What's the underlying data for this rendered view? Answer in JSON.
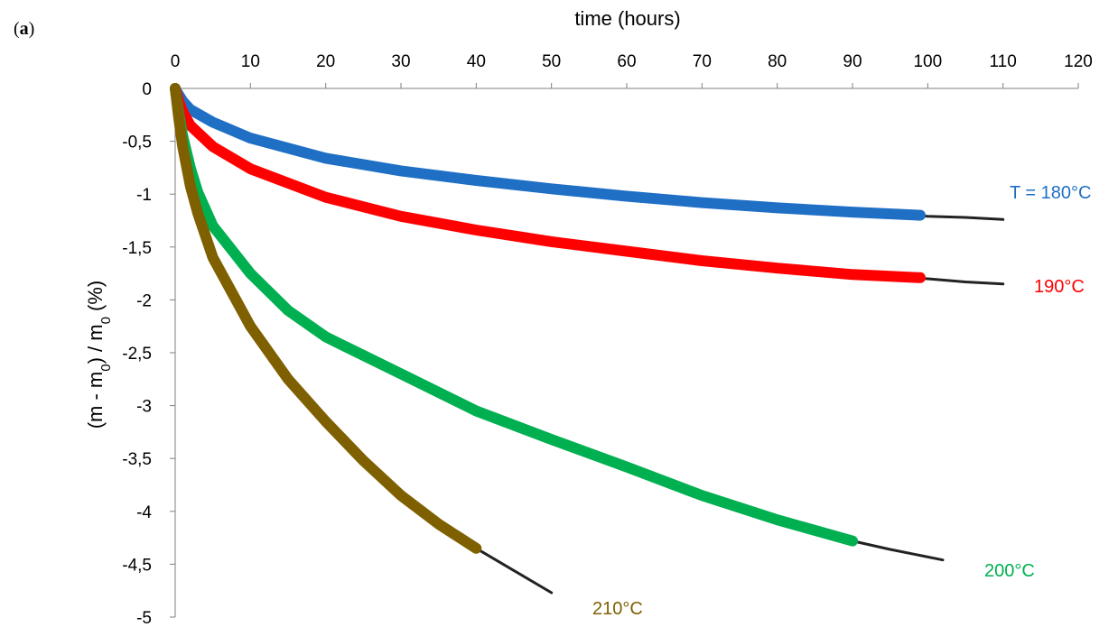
{
  "chart_data": {
    "type": "line",
    "panel_label_prefix": "(",
    "panel_label_letter": "a",
    "panel_label_suffix": ")",
    "xlabel": "time (hours)",
    "ylabel_parts": [
      "(m - m",
      "0",
      ") / m",
      "0",
      " (%)"
    ],
    "xlim": [
      0,
      120
    ],
    "ylim": [
      -5,
      0
    ],
    "x_axis_position": "top",
    "grid": false,
    "x_ticks": [
      0,
      10,
      20,
      30,
      40,
      50,
      60,
      70,
      80,
      90,
      100,
      110,
      120
    ],
    "x_tick_labels": [
      "0",
      "10",
      "20",
      "30",
      "40",
      "50",
      "60",
      "70",
      "80",
      "90",
      "100",
      "110",
      "120"
    ],
    "y_ticks": [
      0,
      -0.5,
      -1,
      -1.5,
      -2,
      -2.5,
      -3,
      -3.5,
      -4,
      -4.5,
      -5
    ],
    "y_tick_labels": [
      "0",
      "-0,5",
      "-1",
      "-1,5",
      "-2",
      "-2,5",
      "-3",
      "-3,5",
      "-4",
      "-4,5",
      "-5"
    ],
    "series": [
      {
        "label": "T = 180°C",
        "color": "#1f6fc5",
        "x": [
          0,
          0.2,
          1,
          2,
          5,
          10,
          20,
          30,
          40,
          50,
          60,
          70,
          80,
          90,
          99
        ],
        "y": [
          0,
          -0.03,
          -0.12,
          -0.2,
          -0.32,
          -0.47,
          -0.66,
          -0.78,
          -0.87,
          -0.95,
          -1.02,
          -1.08,
          -1.13,
          -1.17,
          -1.2
        ],
        "model_x": [
          95,
          100,
          105,
          110
        ],
        "model_y": [
          -1.19,
          -1.21,
          -1.22,
          -1.24
        ]
      },
      {
        "label": "190°C",
        "color": "#ff0000",
        "x": [
          0,
          0.5,
          1,
          2,
          5,
          10,
          20,
          30,
          40,
          50,
          60,
          70,
          80,
          90,
          99
        ],
        "y": [
          0,
          -0.13,
          -0.22,
          -0.35,
          -0.55,
          -0.76,
          -1.03,
          -1.21,
          -1.34,
          -1.45,
          -1.54,
          -1.63,
          -1.7,
          -1.76,
          -1.79
        ],
        "model_x": [
          95,
          100,
          105,
          110
        ],
        "model_y": [
          -1.78,
          -1.8,
          -1.83,
          -1.85
        ]
      },
      {
        "label": "200°C",
        "color": "#00b050",
        "x": [
          0,
          0.5,
          1,
          2,
          3,
          5,
          10,
          15,
          20,
          30,
          40,
          50,
          60,
          70,
          80,
          90
        ],
        "y": [
          0,
          -0.25,
          -0.45,
          -0.75,
          -0.98,
          -1.3,
          -1.75,
          -2.1,
          -2.35,
          -2.7,
          -3.05,
          -3.32,
          -3.58,
          -3.85,
          -4.08,
          -4.28
        ],
        "model_x": [
          85,
          90,
          95,
          102
        ],
        "model_y": [
          -4.18,
          -4.28,
          -4.36,
          -4.46
        ]
      },
      {
        "label": "210°C",
        "color": "#7f6000",
        "x": [
          0,
          0.5,
          1,
          2,
          3,
          5,
          10,
          15,
          20,
          25,
          30,
          35,
          40
        ],
        "y": [
          0,
          -0.3,
          -0.55,
          -0.92,
          -1.18,
          -1.6,
          -2.25,
          -2.75,
          -3.15,
          -3.52,
          -3.85,
          -4.12,
          -4.35
        ],
        "model_x": [
          37,
          40,
          45,
          50
        ],
        "model_y": [
          -4.2,
          -4.35,
          -4.56,
          -4.77
        ]
      }
    ]
  }
}
